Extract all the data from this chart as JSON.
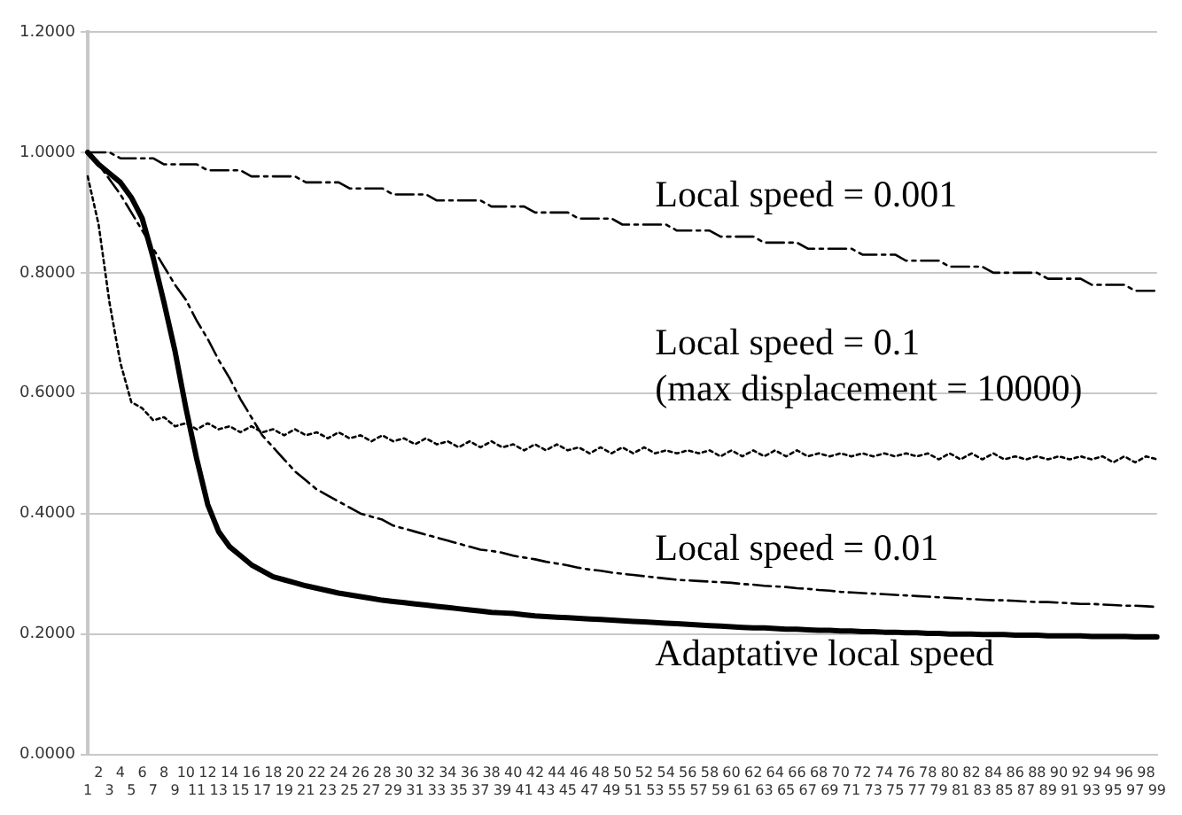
{
  "chart_data": {
    "type": "line",
    "categories": [
      "1",
      "2",
      "3",
      "4",
      "5",
      "6",
      "7",
      "8",
      "9",
      "10",
      "11",
      "12",
      "13",
      "14",
      "15",
      "16",
      "17",
      "18",
      "19",
      "20",
      "21",
      "22",
      "23",
      "24",
      "25",
      "26",
      "27",
      "28",
      "29",
      "30",
      "31",
      "32",
      "33",
      "34",
      "35",
      "36",
      "37",
      "38",
      "39",
      "40",
      "41",
      "42",
      "43",
      "44",
      "45",
      "46",
      "47",
      "48",
      "49",
      "50",
      "51",
      "52",
      "53",
      "54",
      "55",
      "56",
      "57",
      "58",
      "59",
      "60",
      "61",
      "62",
      "63",
      "64",
      "65",
      "66",
      "67",
      "68",
      "69",
      "70",
      "71",
      "72",
      "73",
      "74",
      "75",
      "76",
      "77",
      "78",
      "79",
      "80",
      "81",
      "82",
      "83",
      "84",
      "85",
      "86",
      "87",
      "88",
      "89",
      "90",
      "91",
      "92",
      "93",
      "94",
      "95",
      "96",
      "97",
      "98",
      "99"
    ],
    "ylim": [
      0,
      1.2
    ],
    "yticks": [
      {
        "value": 0,
        "label": "0.0000"
      },
      {
        "value": 0.2,
        "label": "0.2000"
      },
      {
        "value": 0.4,
        "label": "0.4000"
      },
      {
        "value": 0.6,
        "label": "0.6000"
      },
      {
        "value": 0.8,
        "label": "0.8000"
      },
      {
        "value": 1,
        "label": "1.0000"
      },
      {
        "value": 1.2,
        "label": "1.2000"
      }
    ],
    "grid": "y",
    "legend": false,
    "marker": "none",
    "series": [
      {
        "name": "Local speed = 0.001",
        "color": "#000000",
        "line_style": "dashed",
        "values": [
          1.0,
          1.0,
          1.0,
          0.99,
          0.99,
          0.99,
          0.99,
          0.98,
          0.98,
          0.98,
          0.98,
          0.97,
          0.97,
          0.97,
          0.97,
          0.96,
          0.96,
          0.96,
          0.96,
          0.96,
          0.95,
          0.95,
          0.95,
          0.95,
          0.94,
          0.94,
          0.94,
          0.94,
          0.93,
          0.93,
          0.93,
          0.93,
          0.92,
          0.92,
          0.92,
          0.92,
          0.92,
          0.91,
          0.91,
          0.91,
          0.91,
          0.9,
          0.9,
          0.9,
          0.9,
          0.89,
          0.89,
          0.89,
          0.89,
          0.88,
          0.88,
          0.88,
          0.88,
          0.88,
          0.87,
          0.87,
          0.87,
          0.87,
          0.86,
          0.86,
          0.86,
          0.86,
          0.85,
          0.85,
          0.85,
          0.85,
          0.84,
          0.84,
          0.84,
          0.84,
          0.84,
          0.83,
          0.83,
          0.83,
          0.83,
          0.82,
          0.82,
          0.82,
          0.82,
          0.81,
          0.81,
          0.81,
          0.81,
          0.8,
          0.8,
          0.8,
          0.8,
          0.8,
          0.79,
          0.79,
          0.79,
          0.79,
          0.78,
          0.78,
          0.78,
          0.78,
          0.77,
          0.77,
          0.77
        ]
      },
      {
        "name": "Local speed = 0.1\n(max displacement = 10000)",
        "color": "#000000",
        "line_style": "dotted",
        "values": [
          0.96,
          0.88,
          0.75,
          0.65,
          0.585,
          0.575,
          0.555,
          0.56,
          0.545,
          0.55,
          0.54,
          0.55,
          0.54,
          0.545,
          0.535,
          0.545,
          0.535,
          0.54,
          0.53,
          0.54,
          0.53,
          0.535,
          0.525,
          0.535,
          0.525,
          0.53,
          0.52,
          0.53,
          0.52,
          0.525,
          0.515,
          0.525,
          0.515,
          0.52,
          0.51,
          0.52,
          0.51,
          0.52,
          0.51,
          0.515,
          0.505,
          0.515,
          0.505,
          0.515,
          0.505,
          0.51,
          0.5,
          0.51,
          0.5,
          0.51,
          0.5,
          0.51,
          0.5,
          0.505,
          0.5,
          0.505,
          0.5,
          0.505,
          0.495,
          0.505,
          0.495,
          0.505,
          0.495,
          0.505,
          0.495,
          0.505,
          0.495,
          0.5,
          0.495,
          0.5,
          0.495,
          0.5,
          0.495,
          0.5,
          0.495,
          0.5,
          0.495,
          0.5,
          0.49,
          0.5,
          0.49,
          0.5,
          0.49,
          0.5,
          0.49,
          0.495,
          0.49,
          0.495,
          0.49,
          0.495,
          0.49,
          0.495,
          0.49,
          0.495,
          0.485,
          0.495,
          0.485,
          0.495,
          0.49
        ]
      },
      {
        "name": "Local speed = 0.01",
        "color": "#000000",
        "line_style": "dashed",
        "values": [
          1.0,
          0.98,
          0.955,
          0.93,
          0.9,
          0.87,
          0.84,
          0.81,
          0.78,
          0.755,
          0.72,
          0.69,
          0.655,
          0.625,
          0.59,
          0.56,
          0.53,
          0.51,
          0.49,
          0.47,
          0.455,
          0.44,
          0.43,
          0.42,
          0.41,
          0.4,
          0.395,
          0.39,
          0.38,
          0.375,
          0.37,
          0.365,
          0.36,
          0.355,
          0.35,
          0.345,
          0.34,
          0.338,
          0.335,
          0.33,
          0.327,
          0.324,
          0.32,
          0.317,
          0.314,
          0.31,
          0.307,
          0.305,
          0.302,
          0.3,
          0.298,
          0.296,
          0.294,
          0.292,
          0.29,
          0.289,
          0.288,
          0.287,
          0.286,
          0.285,
          0.283,
          0.282,
          0.28,
          0.279,
          0.278,
          0.276,
          0.275,
          0.273,
          0.272,
          0.27,
          0.269,
          0.268,
          0.267,
          0.266,
          0.265,
          0.264,
          0.263,
          0.262,
          0.261,
          0.26,
          0.259,
          0.258,
          0.257,
          0.256,
          0.256,
          0.255,
          0.254,
          0.253,
          0.253,
          0.252,
          0.251,
          0.25,
          0.25,
          0.249,
          0.248,
          0.247,
          0.247,
          0.246,
          0.245
        ]
      },
      {
        "name": "Adaptative local speed",
        "color": "#000000",
        "line_style": "solid",
        "values": [
          1.0,
          0.98,
          0.965,
          0.95,
          0.925,
          0.89,
          0.825,
          0.75,
          0.67,
          0.575,
          0.49,
          0.415,
          0.37,
          0.345,
          0.33,
          0.315,
          0.305,
          0.295,
          0.29,
          0.285,
          0.28,
          0.276,
          0.272,
          0.268,
          0.265,
          0.262,
          0.259,
          0.256,
          0.254,
          0.252,
          0.25,
          0.248,
          0.246,
          0.244,
          0.242,
          0.24,
          0.238,
          0.236,
          0.235,
          0.234,
          0.232,
          0.23,
          0.229,
          0.228,
          0.227,
          0.226,
          0.225,
          0.224,
          0.223,
          0.222,
          0.221,
          0.22,
          0.219,
          0.218,
          0.217,
          0.216,
          0.215,
          0.214,
          0.213,
          0.212,
          0.211,
          0.21,
          0.21,
          0.209,
          0.208,
          0.208,
          0.207,
          0.206,
          0.206,
          0.205,
          0.205,
          0.204,
          0.204,
          0.203,
          0.203,
          0.202,
          0.202,
          0.201,
          0.201,
          0.2,
          0.2,
          0.2,
          0.199,
          0.199,
          0.199,
          0.198,
          0.198,
          0.198,
          0.197,
          0.197,
          0.197,
          0.197,
          0.196,
          0.196,
          0.196,
          0.196,
          0.195,
          0.195,
          0.195
        ]
      }
    ]
  }
}
